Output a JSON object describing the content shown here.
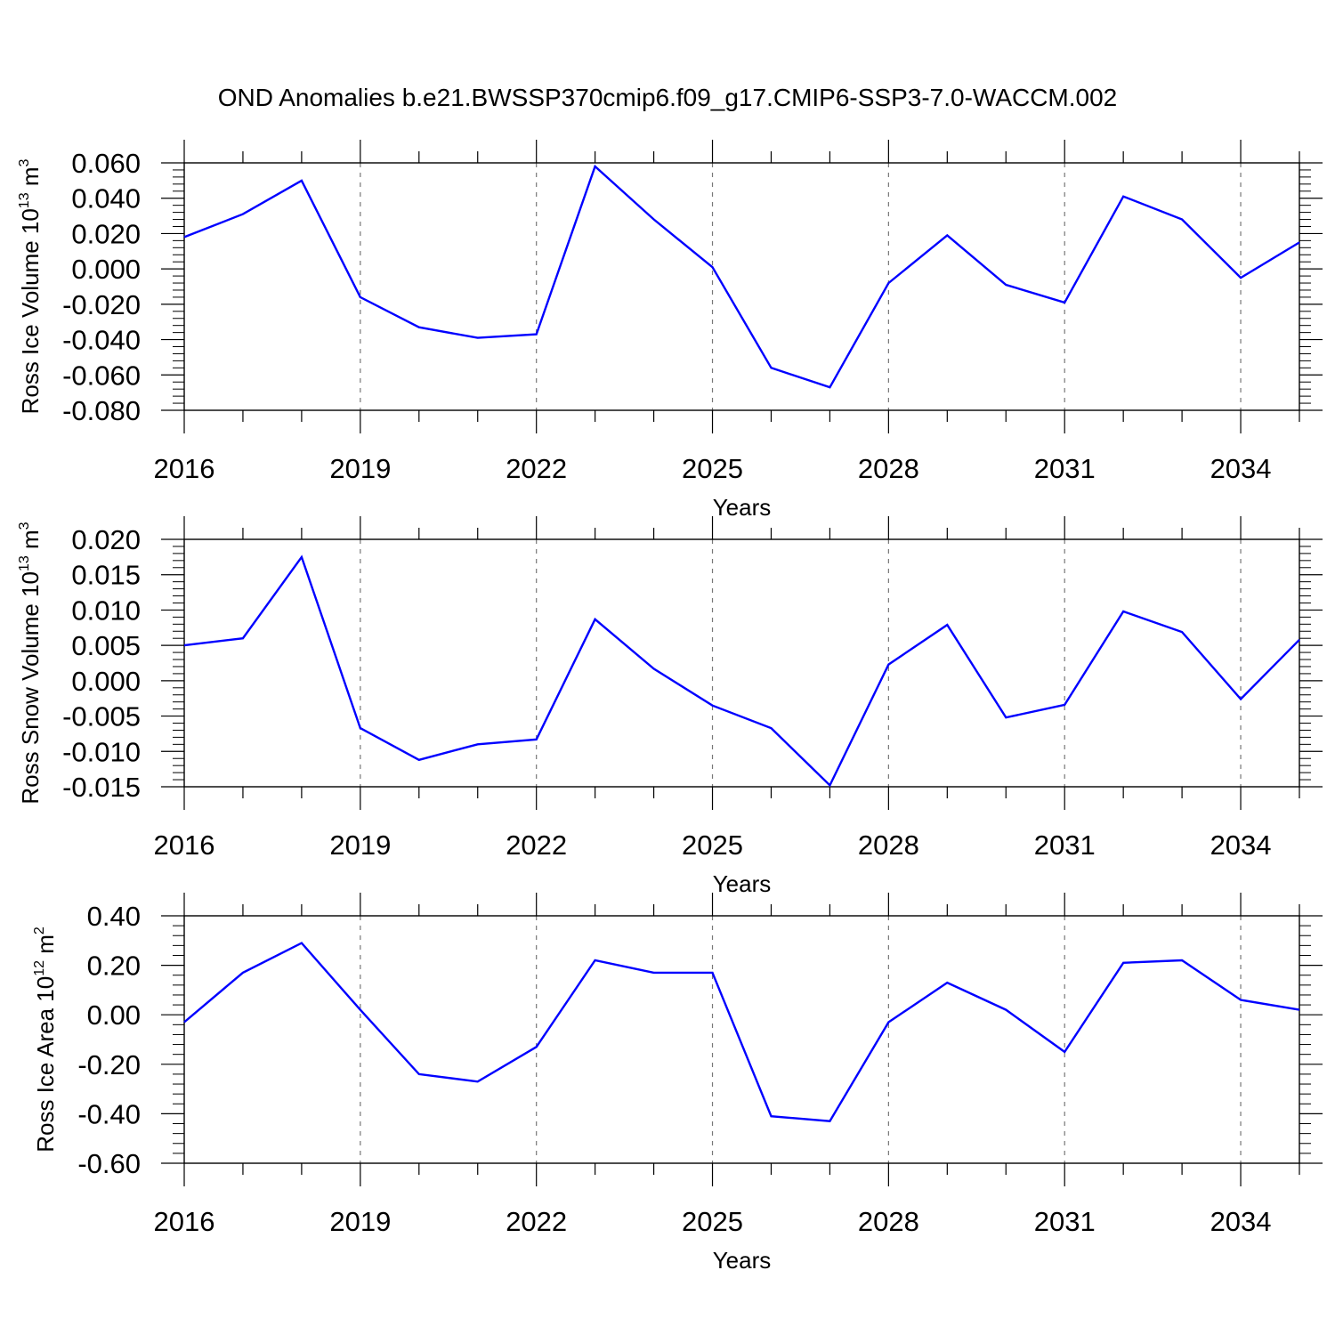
{
  "figure": {
    "title": "OND Anomalies b.e21.BWSSP370cmip6.f09_g17.CMIP6-SSP3-7.0-WACCM.002"
  },
  "chart_data": [
    {
      "type": "line",
      "xlabel": "Years",
      "ylabel": {
        "text": "Ross Ice Volume 10",
        "exp": "13",
        "unit": " m",
        "unit_exp": "3"
      },
      "xlim": [
        2016,
        2035
      ],
      "ylim": [
        -0.08,
        0.06
      ],
      "y_ticks": [
        -0.08,
        -0.06,
        -0.04,
        -0.02,
        0.0,
        0.02,
        0.04,
        0.06
      ],
      "y_tick_labels": [
        "-0.080",
        "-0.060",
        "-0.040",
        "-0.020",
        "0.000",
        "0.020",
        "0.040",
        "0.060"
      ],
      "x_ticks": [
        2016,
        2019,
        2022,
        2025,
        2028,
        2031,
        2034
      ],
      "x_tick_labels": [
        "2016",
        "2019",
        "2022",
        "2025",
        "2028",
        "2031",
        "2034"
      ],
      "grid": "vertical-dashed",
      "color": "#0000ff",
      "x": [
        2016,
        2017,
        2018,
        2019,
        2020,
        2021,
        2022,
        2023,
        2024,
        2025,
        2026,
        2027,
        2028,
        2029,
        2030,
        2031,
        2032,
        2033,
        2034,
        2035
      ],
      "values": [
        0.018,
        0.031,
        0.05,
        -0.016,
        -0.033,
        -0.039,
        -0.037,
        0.058,
        0.028,
        0.001,
        -0.056,
        -0.067,
        -0.008,
        0.019,
        -0.009,
        -0.019,
        0.041,
        0.028,
        -0.005,
        0.015
      ]
    },
    {
      "type": "line",
      "xlabel": "Years",
      "ylabel": {
        "text": "Ross Snow Volume 10",
        "exp": "13",
        "unit": " m",
        "unit_exp": "3"
      },
      "xlim": [
        2016,
        2035
      ],
      "ylim": [
        -0.015,
        0.02
      ],
      "y_ticks": [
        -0.015,
        -0.01,
        -0.005,
        0.0,
        0.005,
        0.01,
        0.015,
        0.02
      ],
      "y_tick_labels": [
        "-0.015",
        "-0.010",
        "-0.005",
        "0.000",
        "0.005",
        "0.010",
        "0.015",
        "0.020"
      ],
      "x_ticks": [
        2016,
        2019,
        2022,
        2025,
        2028,
        2031,
        2034
      ],
      "x_tick_labels": [
        "2016",
        "2019",
        "2022",
        "2025",
        "2028",
        "2031",
        "2034"
      ],
      "grid": "vertical-dashed",
      "color": "#0000ff",
      "x": [
        2016,
        2017,
        2018,
        2019,
        2020,
        2021,
        2022,
        2023,
        2024,
        2025,
        2026,
        2027,
        2028,
        2029,
        2030,
        2031,
        2032,
        2033,
        2034,
        2035
      ],
      "values": [
        0.005,
        0.006,
        0.0175,
        -0.0067,
        -0.0112,
        -0.009,
        -0.0083,
        0.0087,
        0.0017,
        -0.0035,
        -0.0067,
        -0.0148,
        0.0023,
        0.0079,
        -0.0052,
        -0.0034,
        0.0098,
        0.0069,
        -0.0026,
        0.0058
      ]
    },
    {
      "type": "line",
      "xlabel": "Years",
      "ylabel": {
        "text": "Ross Ice Area 10",
        "exp": "12",
        "unit": " m",
        "unit_exp": "2"
      },
      "xlim": [
        2016,
        2035
      ],
      "ylim": [
        -0.6,
        0.4
      ],
      "y_ticks": [
        -0.6,
        -0.4,
        -0.2,
        0.0,
        0.2,
        0.4
      ],
      "y_tick_labels": [
        "-0.60",
        "-0.40",
        "-0.20",
        "0.00",
        "0.20",
        "0.40"
      ],
      "x_ticks": [
        2016,
        2019,
        2022,
        2025,
        2028,
        2031,
        2034
      ],
      "x_tick_labels": [
        "2016",
        "2019",
        "2022",
        "2025",
        "2028",
        "2031",
        "2034"
      ],
      "grid": "vertical-dashed",
      "color": "#0000ff",
      "x": [
        2016,
        2017,
        2018,
        2019,
        2020,
        2021,
        2022,
        2023,
        2024,
        2025,
        2026,
        2027,
        2028,
        2029,
        2030,
        2031,
        2032,
        2033,
        2034,
        2035
      ],
      "values": [
        -0.03,
        0.17,
        0.29,
        0.02,
        -0.24,
        -0.27,
        -0.13,
        0.22,
        0.17,
        0.17,
        -0.41,
        -0.43,
        -0.03,
        0.13,
        0.02,
        -0.15,
        0.21,
        0.22,
        0.06,
        0.02
      ]
    }
  ]
}
